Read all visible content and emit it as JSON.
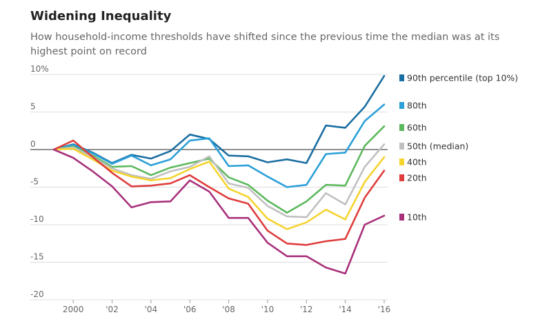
{
  "header": {
    "title": "Widening Inequality",
    "subtitle": "How household-income thresholds have shifted since the previous time the median was at its highest point on record"
  },
  "chart_data": {
    "type": "line",
    "x": [
      1999,
      2000,
      2001,
      2002,
      2003,
      2004,
      2005,
      2006,
      2007,
      2008,
      2009,
      2010,
      2011,
      2012,
      2013,
      2014,
      2015,
      2016
    ],
    "xticks": [
      2000,
      2002,
      2004,
      2006,
      2008,
      2010,
      2012,
      2014,
      2016
    ],
    "xtick_labels": [
      "2000",
      "'02",
      "'04",
      "'06",
      "'08",
      "'10",
      "'12",
      "'14",
      "'16"
    ],
    "yticks": [
      10,
      5,
      0,
      -5,
      -10,
      -15,
      -20
    ],
    "ytick_labels": [
      "10%",
      "5",
      "0",
      "-5",
      "-10",
      "-15",
      "-20"
    ],
    "ylim": [
      -20,
      10
    ],
    "xlim": [
      1999,
      2016
    ],
    "zero_line": true,
    "grid": true,
    "series": [
      {
        "name": "90th percentile (top 10%)",
        "color": "#1a6ea1",
        "values": [
          0,
          0.7,
          -0.4,
          -1.8,
          -0.7,
          -1.2,
          -0.2,
          2.0,
          1.4,
          -0.8,
          -0.9,
          -1.7,
          -1.3,
          -1.8,
          3.2,
          2.9,
          5.7,
          9.8
        ]
      },
      {
        "name": "80th",
        "color": "#2a9fd8",
        "values": [
          0,
          0.6,
          -0.5,
          -1.9,
          -0.8,
          -2.1,
          -1.3,
          1.2,
          1.5,
          -2.2,
          -2.1,
          -3.6,
          -5.0,
          -4.7,
          -0.6,
          -0.4,
          3.8,
          6.0
        ]
      },
      {
        "name": "60th",
        "color": "#5cb85c",
        "values": [
          0,
          0.4,
          -0.8,
          -2.3,
          -2.2,
          -3.4,
          -2.4,
          -1.8,
          -1.2,
          -3.7,
          -4.7,
          -6.8,
          -8.4,
          -6.9,
          -4.7,
          -4.8,
          0.5,
          3.1
        ]
      },
      {
        "name": "50th (median)",
        "color": "#c0c0c0",
        "values": [
          0,
          0.3,
          -1.0,
          -2.5,
          -3.4,
          -3.9,
          -2.9,
          -2.3,
          -0.9,
          -4.5,
          -5.1,
          -7.5,
          -8.9,
          -9.0,
          -5.8,
          -7.3,
          -2.3,
          0.7
        ]
      },
      {
        "name": "40th",
        "color": "#f6d32d",
        "values": [
          0,
          0.1,
          -1.3,
          -2.8,
          -3.6,
          -4.1,
          -3.8,
          -2.6,
          -1.6,
          -5.2,
          -6.3,
          -9.2,
          -10.6,
          -9.7,
          -8.0,
          -9.3,
          -4.3,
          -1.0
        ]
      },
      {
        "name": "20th",
        "color": "#e03c3c",
        "values": [
          0,
          1.2,
          -1.0,
          -3.1,
          -4.9,
          -4.8,
          -4.5,
          -3.4,
          -5.0,
          -6.5,
          -7.2,
          -10.8,
          -12.5,
          -12.7,
          -12.2,
          -11.9,
          -6.4,
          -2.8
        ]
      },
      {
        "name": "10th",
        "color": "#a8307a",
        "values": [
          0,
          -1.1,
          -2.9,
          -4.9,
          -7.7,
          -7.0,
          -6.9,
          -4.1,
          -5.6,
          -9.1,
          -9.1,
          -12.4,
          -14.2,
          -14.2,
          -15.7,
          -16.5,
          -10.0,
          -8.8
        ]
      }
    ]
  }
}
